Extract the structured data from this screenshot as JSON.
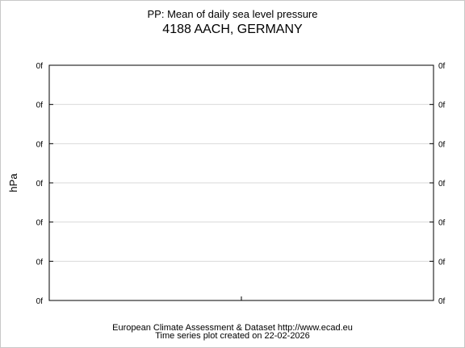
{
  "chart_data": {
    "type": "line",
    "title": "PP: Mean of daily sea level pressure",
    "subtitle": "4188 AACH, GERMANY",
    "ylabel": "hPa",
    "xlabel": "",
    "yticks": [
      "0f",
      "0f",
      "0f",
      "0f",
      "0f",
      "0f",
      "0f"
    ],
    "grid": true,
    "series": []
  },
  "footer": {
    "line1": "European Climate Assessment & Dataset  http://www.ecad.eu",
    "line2": "Time series plot created on 22-02-2026"
  }
}
